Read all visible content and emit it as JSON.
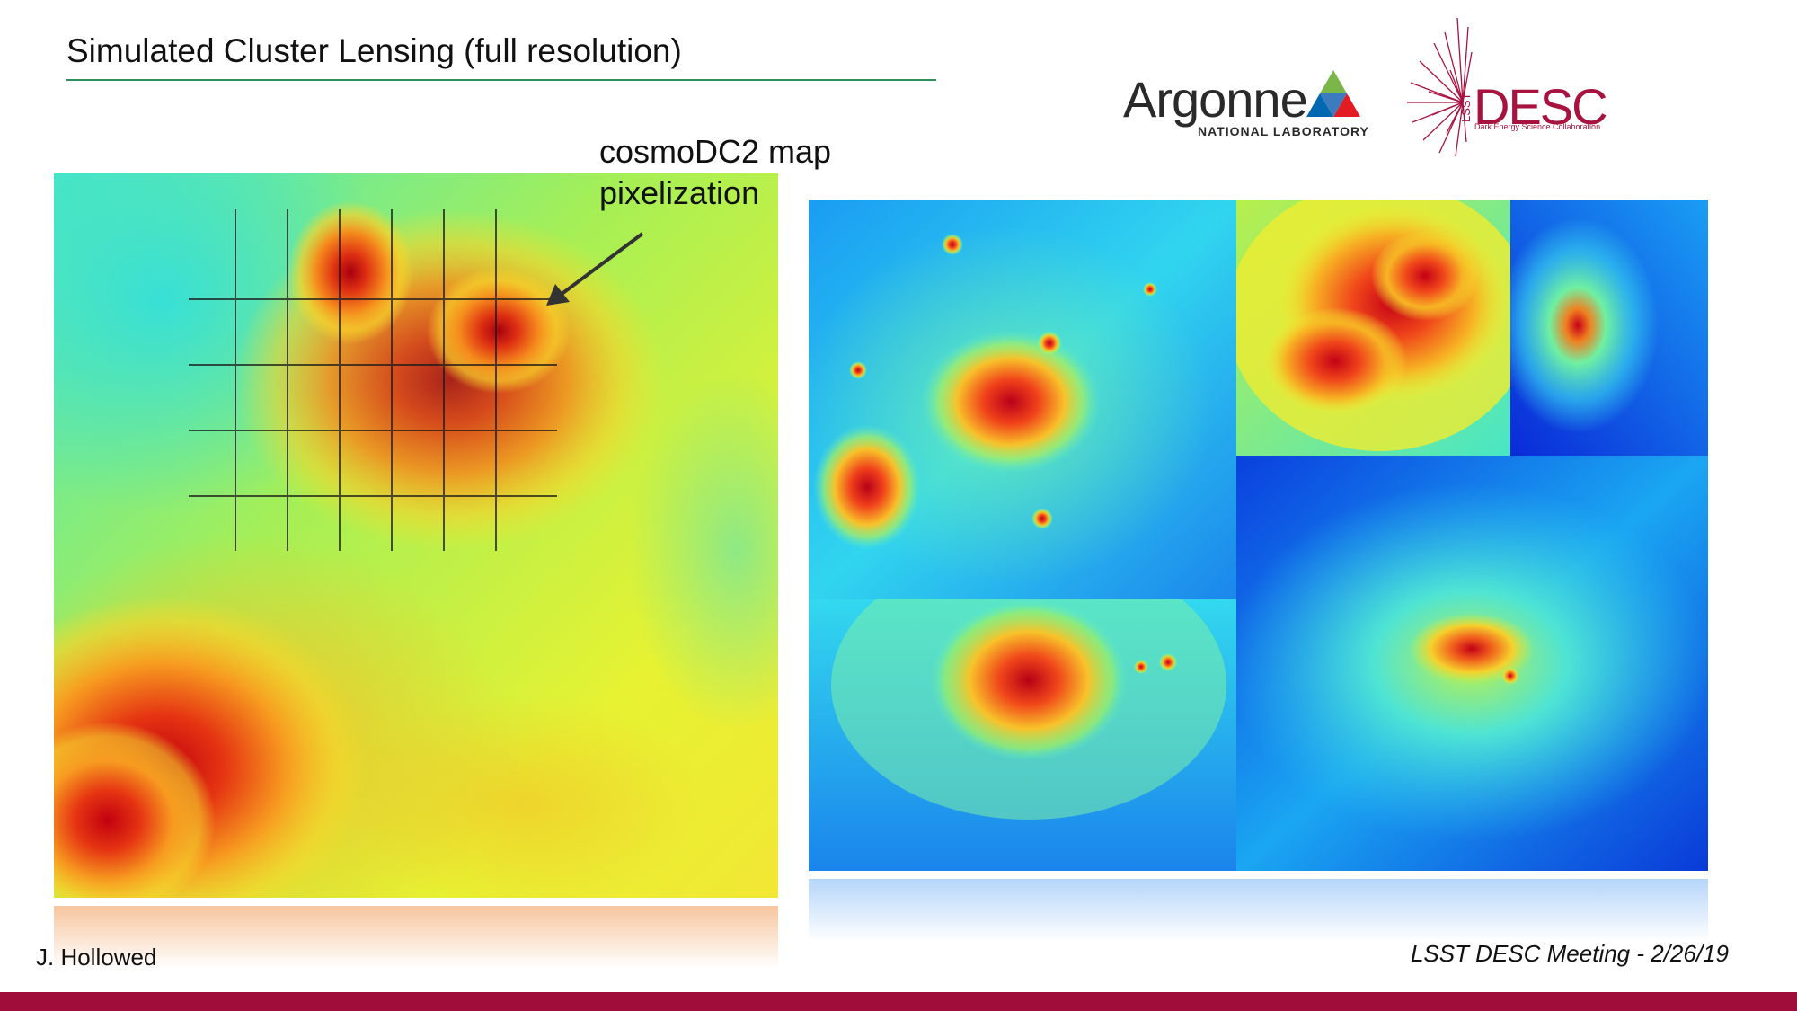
{
  "slide": {
    "title": "Simulated Cluster Lensing (full resolution)"
  },
  "logos": {
    "argonne": {
      "name": "Argonne",
      "subtitle": "NATIONAL LABORATORY",
      "icon": "argonne-triangle-icon",
      "colors": [
        "#7ab648",
        "#e31b23",
        "#0067b1"
      ]
    },
    "desc": {
      "vertical": "LSST",
      "name": "DESC",
      "subtitle": "Dark Energy Science Collaboration",
      "icon": "starburst-icon",
      "color": "#a8123e"
    }
  },
  "annotation": {
    "line1": "cosmoDC2 map",
    "line2": "pixelization"
  },
  "footer": {
    "author": "J. Hollowed",
    "meeting": "LSST DESC Meeting - 2/26/19"
  },
  "theme": {
    "accent_bar": "#a10d3a",
    "title_rule": "#2f8f5b"
  }
}
